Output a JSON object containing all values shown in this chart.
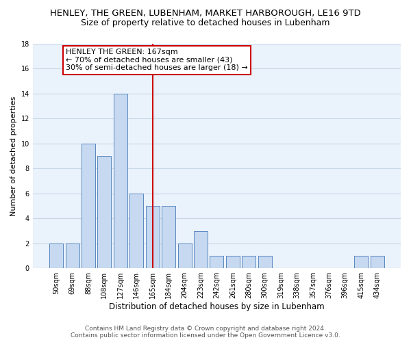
{
  "title": "HENLEY, THE GREEN, LUBENHAM, MARKET HARBOROUGH, LE16 9TD",
  "subtitle": "Size of property relative to detached houses in Lubenham",
  "xlabel": "Distribution of detached houses by size in Lubenham",
  "ylabel": "Number of detached properties",
  "bar_labels": [
    "50sqm",
    "69sqm",
    "88sqm",
    "108sqm",
    "127sqm",
    "146sqm",
    "165sqm",
    "184sqm",
    "204sqm",
    "223sqm",
    "242sqm",
    "261sqm",
    "280sqm",
    "300sqm",
    "319sqm",
    "338sqm",
    "357sqm",
    "376sqm",
    "396sqm",
    "415sqm",
    "434sqm"
  ],
  "bar_values": [
    2,
    2,
    10,
    9,
    14,
    6,
    5,
    5,
    2,
    3,
    1,
    1,
    1,
    1,
    0,
    0,
    0,
    0,
    0,
    1,
    1
  ],
  "bar_color": "#c6d9f0",
  "bar_edge_color": "#5a88c0",
  "vline_color": "#cc0000",
  "annotation_text": "HENLEY THE GREEN: 167sqm\n← 70% of detached houses are smaller (43)\n30% of semi-detached houses are larger (18) →",
  "annotation_box_color": "#ffffff",
  "annotation_box_edge_color": "#cc0000",
  "ylim": [
    0,
    18
  ],
  "yticks": [
    0,
    2,
    4,
    6,
    8,
    10,
    12,
    14,
    16,
    18
  ],
  "grid_color": "#c8d8e8",
  "bg_color": "#eaf2fb",
  "footer_line1": "Contains HM Land Registry data © Crown copyright and database right 2024.",
  "footer_line2": "Contains public sector information licensed under the Open Government Licence v3.0.",
  "title_fontsize": 9.5,
  "subtitle_fontsize": 9,
  "xlabel_fontsize": 8.5,
  "ylabel_fontsize": 8,
  "tick_fontsize": 7,
  "annotation_fontsize": 8,
  "footer_fontsize": 6.5
}
